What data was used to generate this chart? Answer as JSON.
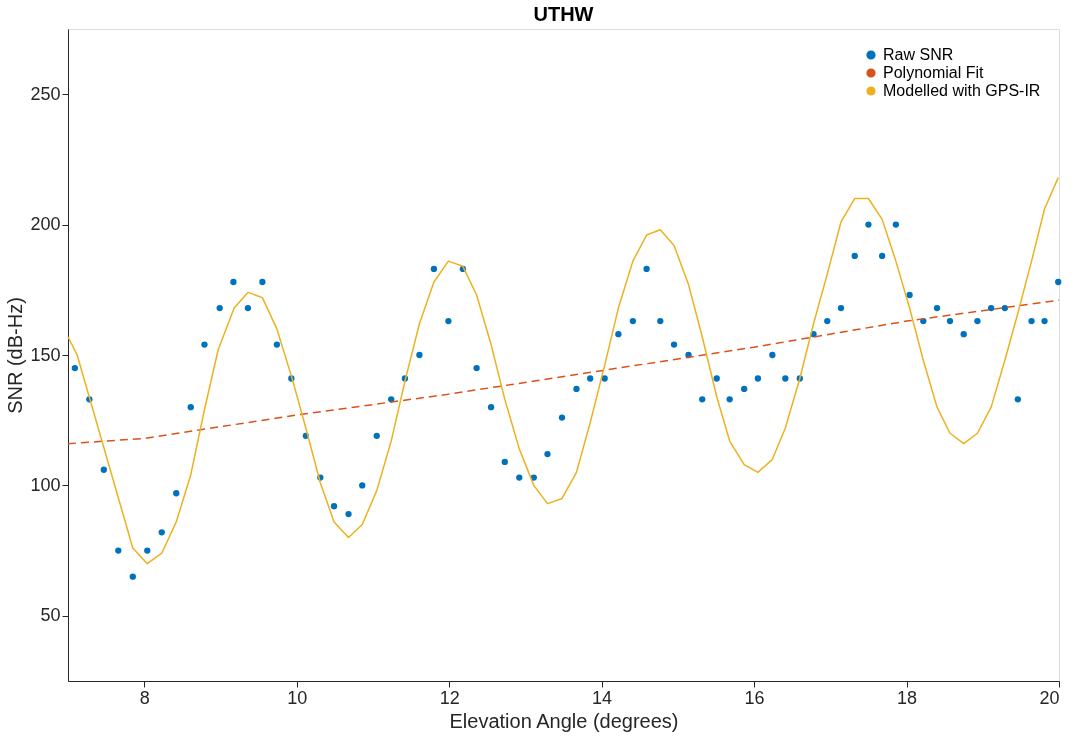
{
  "chart_data": {
    "type": "line",
    "title": "UTHW",
    "xlabel": "Elevation Angle (degrees)",
    "ylabel": "SNR (dB-Hz)",
    "xlim": [
      7,
      20
    ],
    "xticks": [
      8,
      10,
      12,
      14,
      16,
      18,
      20
    ],
    "ylim": [
      25,
      275
    ],
    "yticks": [
      50,
      100,
      150,
      200,
      250
    ],
    "grid": false,
    "legend": "top right",
    "series": [
      {
        "name": "Raw SNR",
        "type": "scatter",
        "marker": "circle",
        "color": "#0072bd",
        "x": [
          7.09,
          7.28,
          7.47,
          7.66,
          7.85,
          8.04,
          8.23,
          8.42,
          8.61,
          8.79,
          8.99,
          9.17,
          9.36,
          9.55,
          9.74,
          9.93,
          10.12,
          10.31,
          10.49,
          10.68,
          10.86,
          11.05,
          11.24,
          11.42,
          11.61,
          11.8,
          11.99,
          12.18,
          12.36,
          12.55,
          12.73,
          12.92,
          13.11,
          13.29,
          13.48,
          13.67,
          13.85,
          14.04,
          14.22,
          14.41,
          14.59,
          14.77,
          14.95,
          15.14,
          15.32,
          15.51,
          15.68,
          15.87,
          16.05,
          16.24,
          16.41,
          16.6,
          16.78,
          16.96,
          17.14,
          17.32,
          17.5,
          17.68,
          17.86,
          18.04,
          18.22,
          18.4,
          18.57,
          18.75,
          18.93,
          19.11,
          19.29,
          19.46,
          19.64,
          19.81,
          19.99
        ],
        "values": [
          145,
          133,
          106,
          75,
          65,
          75,
          82,
          97,
          130,
          154,
          168,
          178,
          168,
          178,
          154,
          141,
          119,
          103,
          92,
          89,
          100,
          119,
          133,
          141,
          150,
          183,
          163,
          183,
          145,
          130,
          109,
          103,
          103,
          112,
          126,
          137,
          141,
          141,
          158,
          163,
          183,
          163,
          154,
          150,
          133,
          141,
          133,
          137,
          141,
          150,
          141,
          141,
          158,
          163,
          168,
          188,
          200,
          188,
          200,
          173,
          163,
          168,
          163,
          158,
          163,
          168,
          168,
          133,
          163,
          163,
          178
        ]
      },
      {
        "name": "Polynomial Fit",
        "type": "line",
        "line_style": "dashed",
        "color": "#d95319",
        "x": [
          7,
          8,
          10,
          12,
          14,
          16,
          18,
          20
        ],
        "values": [
          116,
          118,
          127,
          135,
          144,
          153,
          163,
          171
        ]
      },
      {
        "name": "Modelled with GPS-IR",
        "type": "line",
        "line_style": "solid",
        "color": "#edb120",
        "x": [
          7,
          7.12,
          7.85,
          8.04,
          8.23,
          8.42,
          8.61,
          8.79,
          8.97,
          9.18,
          9.36,
          9.55,
          9.74,
          9.93,
          10.12,
          10.31,
          10.49,
          10.68,
          10.86,
          11.05,
          11.24,
          11.42,
          11.61,
          11.8,
          11.99,
          12.18,
          12.36,
          12.55,
          12.73,
          12.92,
          13.11,
          13.29,
          13.48,
          13.67,
          13.85,
          14.04,
          14.22,
          14.41,
          14.59,
          14.77,
          14.95,
          15.14,
          15.32,
          15.51,
          15.68,
          15.87,
          16.05,
          16.24,
          16.41,
          16.6,
          16.78,
          16.96,
          17.14,
          17.32,
          17.5,
          17.68,
          17.86,
          18.04,
          18.22,
          18.4,
          18.57,
          18.75,
          18.93,
          19.11,
          19.29,
          19.46,
          19.64,
          19.81,
          19.99
        ],
        "values": [
          157,
          150,
          76,
          70,
          74,
          86,
          104,
          129,
          152,
          168,
          174,
          172,
          160,
          142,
          122,
          101,
          86,
          80,
          85,
          98,
          117,
          140,
          162,
          178,
          186,
          184,
          173,
          154,
          133,
          114,
          100,
          93,
          95,
          105,
          124,
          146,
          168,
          186,
          196,
          198,
          192,
          177,
          157,
          134,
          117,
          108,
          105,
          110,
          122,
          141,
          162,
          181,
          201,
          210,
          210,
          202,
          186,
          168,
          148,
          130,
          120,
          116,
          120,
          130,
          148,
          166,
          186,
          206,
          218
        ]
      }
    ]
  }
}
